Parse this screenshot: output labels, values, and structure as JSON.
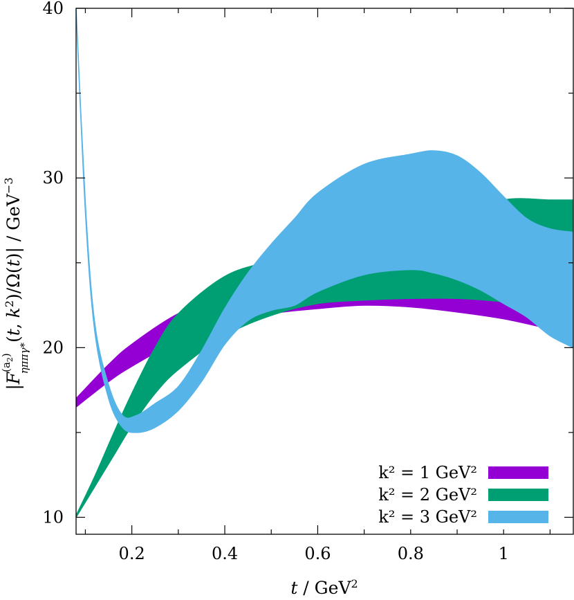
{
  "chart_data": {
    "type": "area",
    "xlabel": "t / GeV²",
    "ylabel": "|F^(a₂)_ηππγ*(t, k²)/Ω(t)| / GeV⁻³",
    "xlim": [
      0.08,
      1.15
    ],
    "ylim": [
      9,
      40
    ],
    "x_ticks": [
      0.2,
      0.4,
      0.6,
      0.8,
      1
    ],
    "x_tick_labels": [
      "0.2",
      "0.4",
      "0.6",
      "0.8",
      "1"
    ],
    "y_ticks": [
      10,
      20,
      30,
      40
    ],
    "y_tick_labels": [
      "10",
      "20",
      "30",
      "40"
    ],
    "grid": false,
    "legend_position": "bottom-right",
    "series": [
      {
        "name": "k² = 1 GeV²",
        "color": "#9400d3",
        "x": [
          0.08,
          0.15,
          0.2,
          0.3,
          0.4,
          0.5,
          0.6,
          0.7,
          0.8,
          0.9,
          1.0,
          1.1,
          1.15
        ],
        "lower": [
          16.5,
          18.0,
          18.9,
          20.4,
          21.4,
          22.0,
          22.3,
          22.5,
          22.4,
          22.1,
          21.7,
          21.1,
          20.8
        ],
        "upper": [
          17.0,
          19.0,
          20.2,
          22.0,
          23.0,
          23.4,
          23.6,
          23.7,
          23.7,
          23.5,
          23.1,
          22.4,
          22.1
        ]
      },
      {
        "name": "k² = 2 GeV²",
        "color": "#009e73",
        "x": [
          0.08,
          0.12,
          0.16,
          0.2,
          0.25,
          0.3,
          0.4,
          0.5,
          0.6,
          0.7,
          0.8,
          0.9,
          1.0,
          1.1,
          1.15
        ],
        "lower": [
          10.0,
          11.8,
          13.6,
          15.4,
          17.3,
          18.7,
          20.7,
          21.9,
          22.6,
          22.8,
          22.9,
          22.9,
          22.7,
          22.3,
          22.0
        ],
        "upper": [
          10.1,
          12.4,
          14.9,
          17.3,
          20.0,
          22.0,
          24.2,
          25.1,
          25.7,
          26.3,
          26.6,
          27.6,
          28.7,
          28.7,
          28.7
        ]
      },
      {
        "name": "k² = 3 GeV²",
        "color": "#56b4e9",
        "x": [
          0.08,
          0.1,
          0.12,
          0.15,
          0.18,
          0.21,
          0.25,
          0.3,
          0.35,
          0.4,
          0.45,
          0.5,
          0.55,
          0.6,
          0.7,
          0.8,
          0.85,
          0.9,
          0.95,
          1.0,
          1.05,
          1.1,
          1.15
        ],
        "lower": [
          40.0,
          28.0,
          21.0,
          17.0,
          15.3,
          15.0,
          15.3,
          16.3,
          18.0,
          20.2,
          21.6,
          22.2,
          22.5,
          23.3,
          24.3,
          24.6,
          24.4,
          24.0,
          23.4,
          22.6,
          21.8,
          20.7,
          20.0
        ],
        "upper": [
          40.0,
          28.5,
          21.5,
          17.8,
          16.0,
          16.0,
          16.7,
          17.7,
          19.8,
          22.3,
          24.4,
          26.1,
          27.6,
          29.1,
          30.8,
          31.4,
          31.6,
          31.3,
          30.3,
          28.9,
          27.6,
          27.0,
          26.8
        ]
      }
    ]
  }
}
